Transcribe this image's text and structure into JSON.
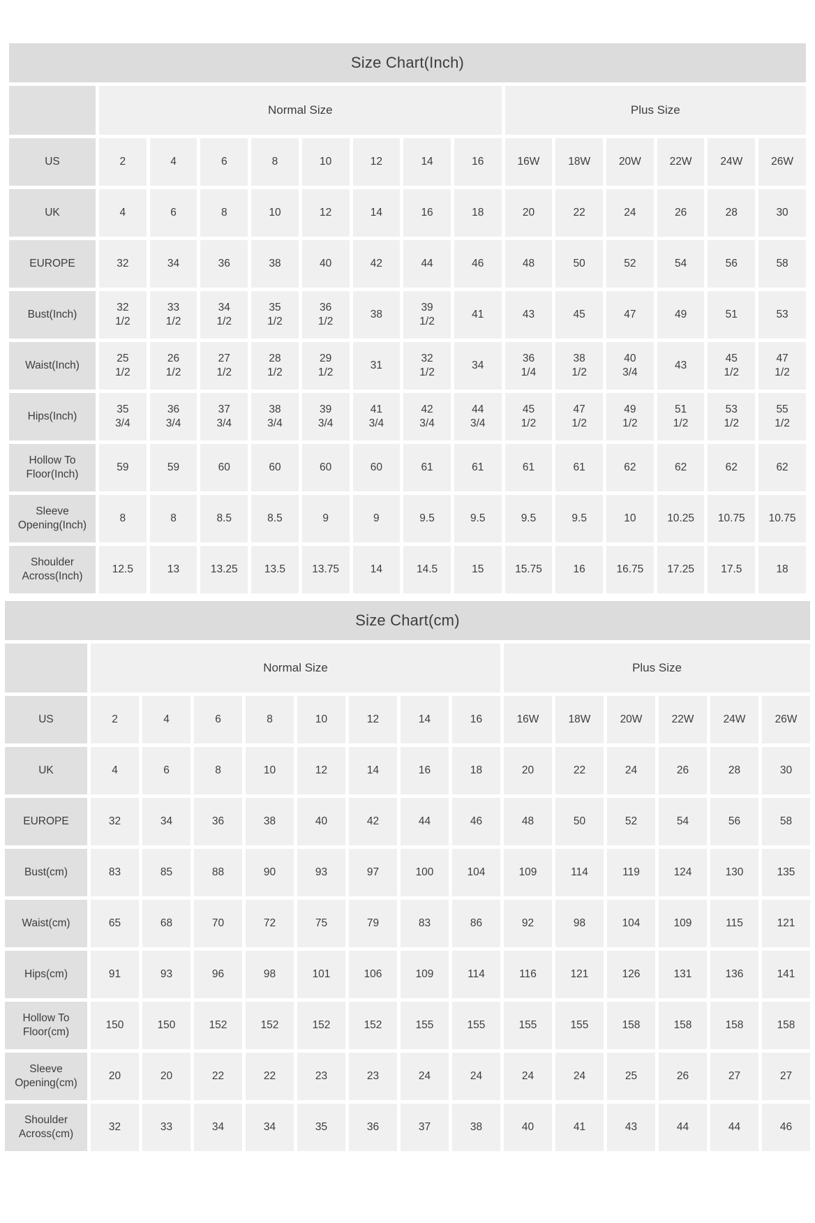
{
  "colors": {
    "title_bar_bg": "#dcdcdc",
    "row_label_bg": "#e0e0e0",
    "value_cell_bg": "#f0f0f0",
    "text": "#3d3d3d",
    "page_bg": "#ffffff"
  },
  "chart_data": [
    {
      "type": "table",
      "title": "Size Chart(Inch)",
      "column_groups": [
        {
          "label": "Normal Size",
          "span": 8
        },
        {
          "label": "Plus Size",
          "span": 6
        }
      ],
      "rows": [
        {
          "label": "US",
          "values": [
            "2",
            "4",
            "6",
            "8",
            "10",
            "12",
            "14",
            "16",
            "16W",
            "18W",
            "20W",
            "22W",
            "24W",
            "26W"
          ]
        },
        {
          "label": "UK",
          "values": [
            "4",
            "6",
            "8",
            "10",
            "12",
            "14",
            "16",
            "18",
            "20",
            "22",
            "24",
            "26",
            "28",
            "30"
          ]
        },
        {
          "label": "EUROPE",
          "values": [
            "32",
            "34",
            "36",
            "38",
            "40",
            "42",
            "44",
            "46",
            "48",
            "50",
            "52",
            "54",
            "56",
            "58"
          ]
        },
        {
          "label": "Bust(Inch)",
          "values": [
            "32\n1/2",
            "33\n1/2",
            "34\n1/2",
            "35\n1/2",
            "36\n1/2",
            "38",
            "39\n1/2",
            "41",
            "43",
            "45",
            "47",
            "49",
            "51",
            "53"
          ]
        },
        {
          "label": "Waist(Inch)",
          "values": [
            "25\n1/2",
            "26\n1/2",
            "27\n1/2",
            "28\n1/2",
            "29\n1/2",
            "31",
            "32\n1/2",
            "34",
            "36\n1/4",
            "38\n1/2",
            "40\n3/4",
            "43",
            "45\n1/2",
            "47\n1/2"
          ]
        },
        {
          "label": "Hips(Inch)",
          "values": [
            "35\n3/4",
            "36\n3/4",
            "37\n3/4",
            "38\n3/4",
            "39\n3/4",
            "41\n3/4",
            "42\n3/4",
            "44\n3/4",
            "45\n1/2",
            "47\n1/2",
            "49\n1/2",
            "51\n1/2",
            "53\n1/2",
            "55\n1/2"
          ]
        },
        {
          "label": "Hollow To\nFloor(Inch)",
          "values": [
            "59",
            "59",
            "60",
            "60",
            "60",
            "60",
            "61",
            "61",
            "61",
            "61",
            "62",
            "62",
            "62",
            "62"
          ]
        },
        {
          "label": "Sleeve\nOpening(Inch)",
          "values": [
            "8",
            "8",
            "8.5",
            "8.5",
            "9",
            "9",
            "9.5",
            "9.5",
            "9.5",
            "9.5",
            "10",
            "10.25",
            "10.75",
            "10.75"
          ]
        },
        {
          "label": "Shoulder\nAcross(Inch)",
          "values": [
            "12.5",
            "13",
            "13.25",
            "13.5",
            "13.75",
            "14",
            "14.5",
            "15",
            "15.75",
            "16",
            "16.75",
            "17.25",
            "17.5",
            "18"
          ]
        }
      ]
    },
    {
      "type": "table",
      "title": "Size Chart(cm)",
      "column_groups": [
        {
          "label": "Normal Size",
          "span": 8
        },
        {
          "label": "Plus Size",
          "span": 6
        }
      ],
      "rows": [
        {
          "label": "US",
          "values": [
            "2",
            "4",
            "6",
            "8",
            "10",
            "12",
            "14",
            "16",
            "16W",
            "18W",
            "20W",
            "22W",
            "24W",
            "26W"
          ]
        },
        {
          "label": "UK",
          "values": [
            "4",
            "6",
            "8",
            "10",
            "12",
            "14",
            "16",
            "18",
            "20",
            "22",
            "24",
            "26",
            "28",
            "30"
          ]
        },
        {
          "label": "EUROPE",
          "values": [
            "32",
            "34",
            "36",
            "38",
            "40",
            "42",
            "44",
            "46",
            "48",
            "50",
            "52",
            "54",
            "56",
            "58"
          ]
        },
        {
          "label": "Bust(cm)",
          "values": [
            "83",
            "85",
            "88",
            "90",
            "93",
            "97",
            "100",
            "104",
            "109",
            "114",
            "119",
            "124",
            "130",
            "135"
          ]
        },
        {
          "label": "Waist(cm)",
          "values": [
            "65",
            "68",
            "70",
            "72",
            "75",
            "79",
            "83",
            "86",
            "92",
            "98",
            "104",
            "109",
            "115",
            "121"
          ]
        },
        {
          "label": "Hips(cm)",
          "values": [
            "91",
            "93",
            "96",
            "98",
            "101",
            "106",
            "109",
            "114",
            "116",
            "121",
            "126",
            "131",
            "136",
            "141"
          ]
        },
        {
          "label": "Hollow To\nFloor(cm)",
          "values": [
            "150",
            "150",
            "152",
            "152",
            "152",
            "152",
            "155",
            "155",
            "155",
            "155",
            "158",
            "158",
            "158",
            "158"
          ]
        },
        {
          "label": "Sleeve\nOpening(cm)",
          "values": [
            "20",
            "20",
            "22",
            "22",
            "23",
            "23",
            "24",
            "24",
            "24",
            "24",
            "25",
            "26",
            "27",
            "27"
          ]
        },
        {
          "label": "Shoulder\nAcross(cm)",
          "values": [
            "32",
            "33",
            "34",
            "34",
            "35",
            "36",
            "37",
            "38",
            "40",
            "41",
            "43",
            "44",
            "44",
            "46"
          ]
        }
      ]
    }
  ]
}
